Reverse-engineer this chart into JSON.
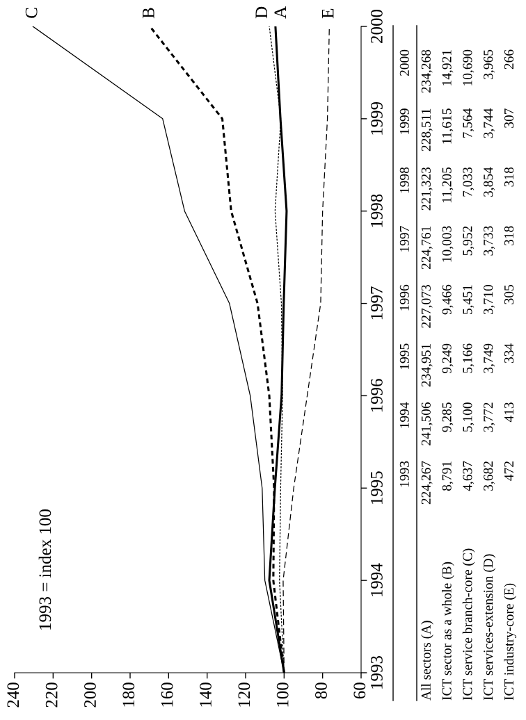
{
  "chart_data": [
    {
      "type": "line",
      "xlim": [
        240,
        60
      ],
      "xticks": [
        60,
        80,
        100,
        120,
        140,
        160,
        180,
        200,
        220,
        240
      ],
      "ylim": [
        1993,
        2000
      ],
      "yticks": [
        1993,
        1994,
        1995,
        1996,
        1997,
        1998,
        1999,
        2000
      ],
      "series": [
        {
          "color": "#000000",
          "line_style": "solid",
          "x": [
            100,
            107.7,
            104.8,
            101.3,
            100.2,
            98.7,
            101.9,
            104.5
          ],
          "values": [
            1993,
            1994,
            1995,
            1996,
            1997,
            1998,
            1999,
            2000
          ]
        },
        {
          "color": "#000000",
          "line_style": "dotted",
          "x": [
            100,
            105.6,
            105.2,
            107.7,
            113.8,
            127.5,
            132.1,
            169.7
          ],
          "values": [
            1993,
            1994,
            1995,
            1996,
            1997,
            1998,
            1999,
            2000
          ]
        },
        {
          "color": "#000000",
          "line_style": "solid",
          "x": [
            100,
            110.0,
            111.4,
            117.6,
            128.4,
            151.7,
            163.1,
            230.5
          ],
          "values": [
            1993,
            1994,
            1995,
            1996,
            1997,
            1998,
            1999,
            2000
          ]
        },
        {
          "color": "#000000",
          "line_style": "dotted",
          "x": [
            100,
            102.4,
            101.8,
            100.8,
            101.4,
            104.7,
            101.7,
            107.7
          ],
          "values": [
            1993,
            1994,
            1995,
            1996,
            1997,
            1998,
            1999,
            2000
          ]
        },
        {
          "color": "#000000",
          "line_style": "dashed",
          "x": [
            100,
            100.5,
            95,
            88,
            81,
            80,
            77.5,
            76.5
          ],
          "values": [
            1993,
            1994,
            1995,
            1996,
            1997,
            1998,
            1999,
            2000
          ]
        }
      ],
      "annotations": [
        "1993 = index 100",
        {
          "text": "C",
          "x": 230.5,
          "y": 2000
        },
        {
          "text": "B",
          "x": 169.7,
          "y": 2000
        },
        {
          "text": "D",
          "x": 107.7,
          "y": 2000
        },
        {
          "text": "A",
          "x": 104.5,
          "y": 2000
        },
        {
          "text": "E",
          "x": 76.5,
          "y": 2000
        },
        "1993",
        "1994",
        "1995",
        "1996",
        "1997",
        "1998",
        "1999",
        "2000",
        "All sectors (A)",
        "224,267",
        "241,506",
        "234,951",
        "227,073",
        "224,761",
        "221,323",
        "228,511",
        "234,268",
        "ICT sector as a whole (B)",
        "8,791",
        "9,285",
        "9,249",
        "9,466",
        "10,003",
        "11,205",
        "11,615",
        "14,921",
        "ICT service branch-core (C)",
        "4,637",
        "5,100",
        "5,166",
        "5,451",
        "5,952",
        "7,033",
        "7,564",
        "10,690",
        "ICT services-extension (D)",
        "3,682",
        "3,772",
        "3,749",
        "3,710",
        "3,733",
        "3,854",
        "3,744",
        "3,965",
        "ICT industry-core (E)",
        "472",
        "413",
        "334",
        "305",
        "318",
        "318",
        "307",
        "266"
      ]
    }
  ]
}
